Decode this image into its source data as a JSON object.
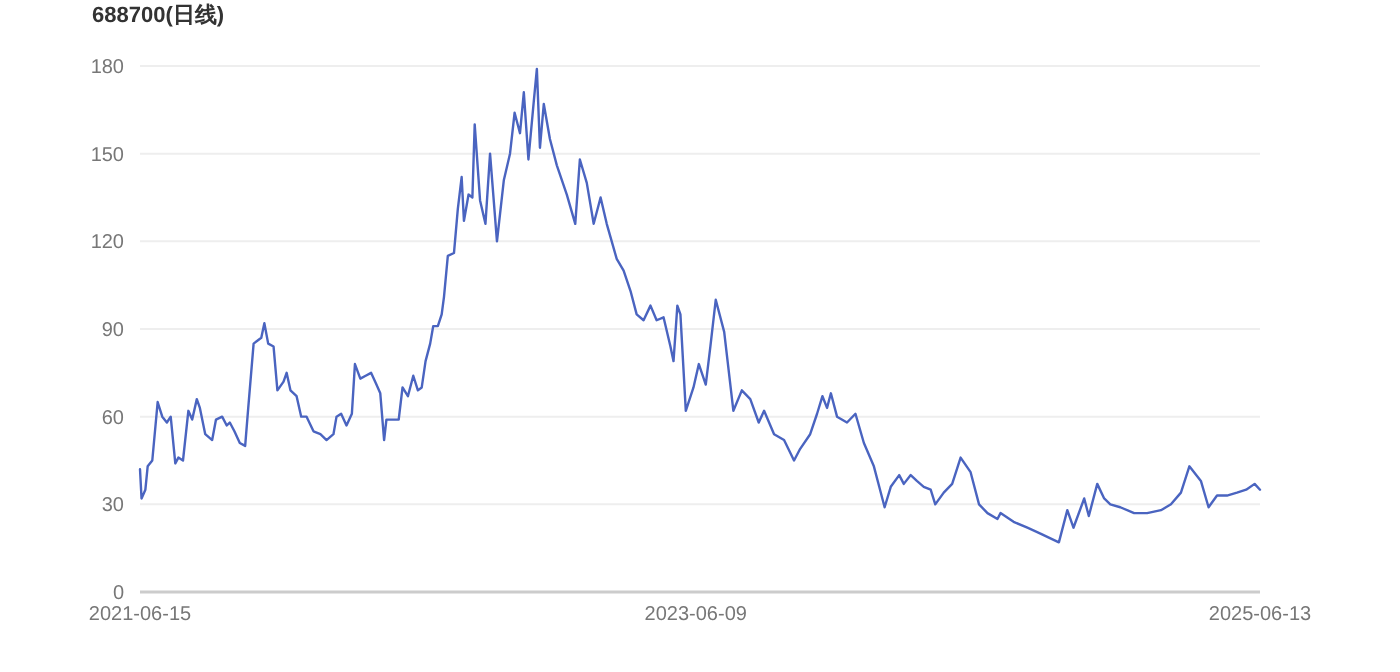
{
  "chart_data": {
    "type": "line",
    "title": "688700(日线)",
    "x": [
      "2021-06-15",
      "2021-06-17",
      "2021-06-22",
      "2021-06-25",
      "2021-07-01",
      "2021-07-08",
      "2021-07-14",
      "2021-07-20",
      "2021-07-25",
      "2021-07-31",
      "2021-08-04",
      "2021-08-10",
      "2021-08-17",
      "2021-08-22",
      "2021-08-28",
      "2021-09-01",
      "2021-09-08",
      "2021-09-17",
      "2021-09-22",
      "2021-09-30",
      "2021-10-06",
      "2021-10-10",
      "2021-10-16",
      "2021-10-23",
      "2021-10-30",
      "2021-11-03",
      "2021-11-10",
      "2021-11-20",
      "2021-11-24",
      "2021-11-29",
      "2021-12-06",
      "2021-12-11",
      "2021-12-19",
      "2021-12-23",
      "2021-12-28",
      "2022-01-05",
      "2022-01-11",
      "2022-01-18",
      "2022-01-27",
      "2022-02-05",
      "2022-02-13",
      "2022-02-22",
      "2022-02-26",
      "2022-03-04",
      "2022-03-11",
      "2022-03-18",
      "2022-03-22",
      "2022-03-29",
      "2022-04-05",
      "2022-04-12",
      "2022-04-19",
      "2022-04-24",
      "2022-04-29",
      "2022-05-02",
      "2022-05-11",
      "2022-05-18",
      "2022-05-23",
      "2022-05-30",
      "2022-06-06",
      "2022-06-12",
      "2022-06-17",
      "2022-06-22",
      "2022-06-28",
      "2022-07-02",
      "2022-07-08",
      "2022-07-13",
      "2022-07-16",
      "2022-07-21",
      "2022-07-29",
      "2022-08-03",
      "2022-08-08",
      "2022-08-11",
      "2022-08-17",
      "2022-08-22",
      "2022-08-25",
      "2022-09-01",
      "2022-09-08",
      "2022-09-14",
      "2022-09-23",
      "2022-10-02",
      "2022-10-10",
      "2022-10-16",
      "2022-10-23",
      "2022-10-28",
      "2022-11-03",
      "2022-11-10",
      "2022-11-14",
      "2022-11-18",
      "2022-11-23",
      "2022-12-01",
      "2022-12-10",
      "2022-12-23",
      "2023-01-03",
      "2023-01-09",
      "2023-01-18",
      "2023-01-27",
      "2023-02-05",
      "2023-02-13",
      "2023-02-26",
      "2023-03-07",
      "2023-03-16",
      "2023-03-24",
      "2023-04-02",
      "2023-04-11",
      "2023-04-19",
      "2023-04-28",
      "2023-05-07",
      "2023-05-11",
      "2023-05-16",
      "2023-05-20",
      "2023-05-27",
      "2023-06-06",
      "2023-06-13",
      "2023-06-22",
      "2023-06-28",
      "2023-07-05",
      "2023-07-16",
      "2023-07-28",
      "2023-08-08",
      "2023-08-19",
      "2023-08-30",
      "2023-09-06",
      "2023-09-19",
      "2023-10-02",
      "2023-10-15",
      "2023-10-23",
      "2023-11-05",
      "2023-11-14",
      "2023-11-21",
      "2023-11-27",
      "2023-12-02",
      "2023-12-10",
      "2023-12-23",
      "2024-01-03",
      "2024-01-14",
      "2024-01-27",
      "2024-02-03",
      "2024-02-10",
      "2024-02-18",
      "2024-02-29",
      "2024-03-06",
      "2024-03-15",
      "2024-03-23",
      "2024-04-01",
      "2024-04-10",
      "2024-04-16",
      "2024-04-27",
      "2024-05-08",
      "2024-05-19",
      "2024-06-01",
      "2024-06-12",
      "2024-06-23",
      "2024-07-06",
      "2024-07-10",
      "2024-07-27",
      "2024-08-14",
      "2024-08-31",
      "2024-09-24",
      "2024-10-05",
      "2024-10-13",
      "2024-10-27",
      "2024-11-02",
      "2024-11-13",
      "2024-11-22",
      "2024-11-30",
      "2024-12-13",
      "2024-12-31",
      "2025-01-17",
      "2025-02-04",
      "2025-02-17",
      "2025-03-02",
      "2025-03-13",
      "2025-03-28",
      "2025-04-07",
      "2025-04-18",
      "2025-05-01",
      "2025-05-14",
      "2025-05-26",
      "2025-06-06",
      "2025-06-13"
    ],
    "series": [
      {
        "color": "#4a64c0",
        "values": [
          42,
          32,
          35,
          43,
          45,
          65,
          60,
          58,
          60,
          44,
          46,
          45,
          62,
          59,
          66,
          63,
          54,
          52,
          59,
          60,
          57,
          58,
          55,
          51,
          50,
          63,
          85,
          87,
          92,
          85,
          84,
          69,
          72,
          75,
          69,
          67,
          60,
          60,
          55,
          54,
          52,
          54,
          60,
          61,
          57,
          61,
          78,
          73,
          74,
          75,
          71,
          68,
          52,
          59,
          59,
          59,
          70,
          67,
          74,
          69,
          70,
          79,
          85,
          91,
          91,
          95,
          101,
          115,
          116,
          131,
          142,
          127,
          136,
          135,
          160,
          134,
          126,
          150,
          120,
          141,
          150,
          164,
          157,
          171,
          148,
          168,
          179,
          152,
          167,
          155,
          146,
          136,
          126,
          148,
          140,
          126,
          135,
          126,
          114,
          110,
          103,
          95,
          93,
          98,
          93,
          94,
          84,
          79,
          98,
          95,
          62,
          70,
          78,
          71,
          84,
          100,
          89,
          62,
          69,
          66,
          58,
          62,
          54,
          52,
          45,
          49,
          54,
          61,
          67,
          63,
          68,
          60,
          58,
          61,
          51,
          43,
          36,
          29,
          36,
          40,
          37,
          40,
          38,
          36,
          35,
          30,
          34,
          37,
          46,
          41,
          30,
          27,
          25,
          27,
          24,
          22,
          20,
          17,
          28,
          22,
          32,
          26,
          37,
          32,
          30,
          29,
          27,
          27,
          28,
          30,
          34,
          43,
          38,
          29,
          33,
          33,
          34,
          35,
          37,
          35
        ]
      }
    ],
    "xlim": [
      "2021-06-15",
      "2025-06-13"
    ],
    "xticks": [
      "2021-06-15",
      "2023-06-09",
      "2025-06-13"
    ],
    "ylim": [
      0,
      180
    ],
    "yticks": [
      0,
      30,
      60,
      90,
      120,
      150,
      180
    ],
    "grid": "y",
    "marker": "none",
    "line_style": "solid"
  }
}
